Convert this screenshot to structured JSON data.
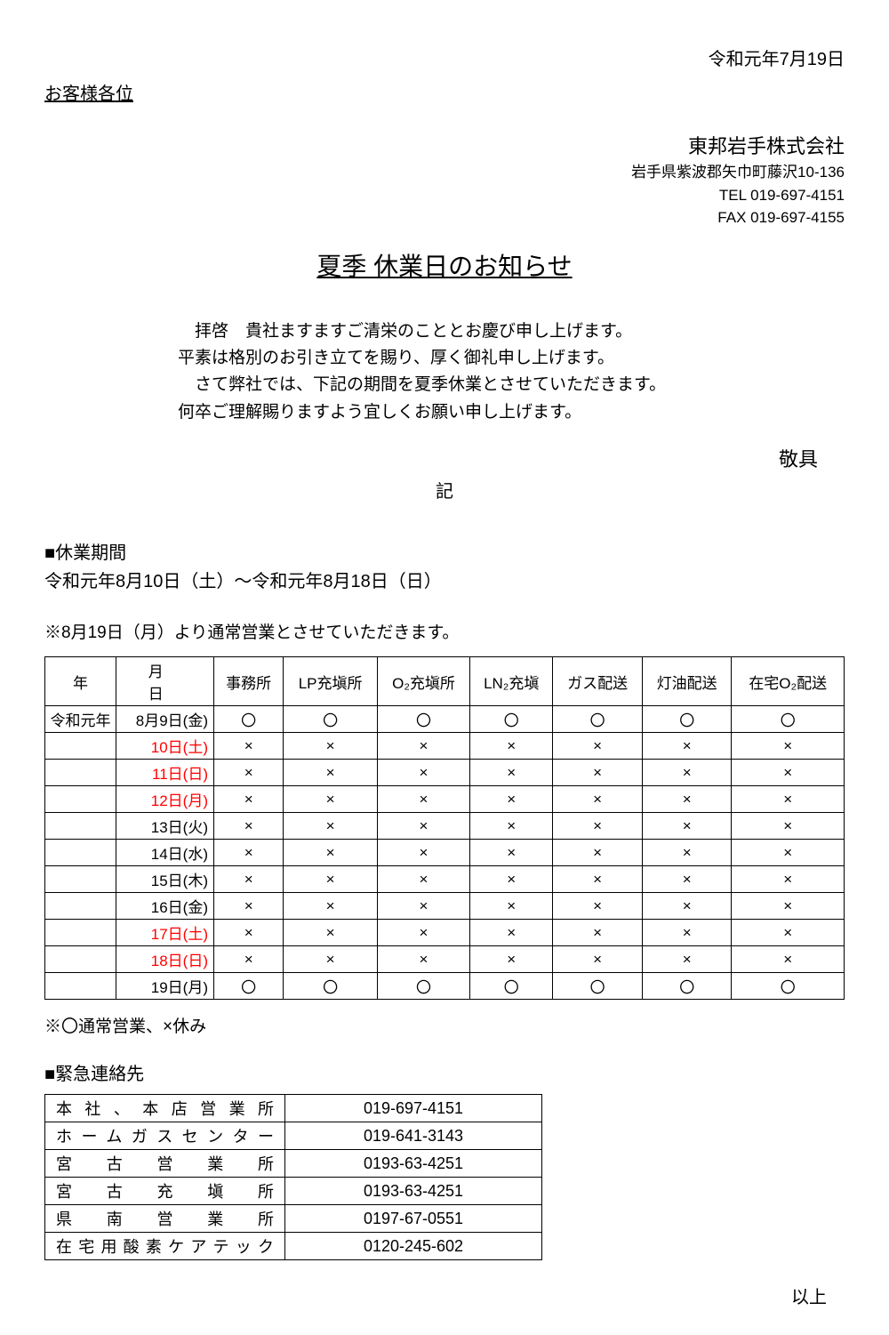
{
  "header": {
    "date": "令和元年7月19日",
    "addressee": "お客様各位"
  },
  "company": {
    "name": "東邦岩手株式会社",
    "address": "岩手県紫波郡矢巾町藤沢10-136",
    "tel": "TEL 019-697-4151",
    "fax": "FAX 019-697-4155"
  },
  "title": "夏季 休業日のお知らせ",
  "body": {
    "line1": "拝啓　貴社ますますご清栄のこととお慶び申し上げます。",
    "line2": "平素は格別のお引き立てを賜り、厚く御礼申し上げます。",
    "line3": "　さて弊社では、下記の期間を夏季休業とさせていただきます。",
    "line4": "何卒ご理解賜りますよう宜しくお願い申し上げます。"
  },
  "keigu": "敬具",
  "ki": "記",
  "sections": {
    "closure_head": "■休業期間",
    "closure_period": "令和元年8月10日（土）～令和元年8月18日（日）",
    "resume_note": "※8月19日（月）より通常営業とさせていただきます。"
  },
  "schedule": {
    "columns": [
      "年",
      "月　日",
      "事務所",
      "LP充塡所",
      "O₂充塡所",
      "LN₂充塡",
      "ガス配送",
      "灯油配送",
      "在宅O₂配送"
    ],
    "year_label": "令和元年",
    "rows": [
      {
        "date": "8月9日(金)",
        "holiday": false,
        "cells": [
          "〇",
          "〇",
          "〇",
          "〇",
          "〇",
          "〇",
          "〇"
        ]
      },
      {
        "date": "10日(土)",
        "holiday": true,
        "cells": [
          "×",
          "×",
          "×",
          "×",
          "×",
          "×",
          "×"
        ]
      },
      {
        "date": "11日(日)",
        "holiday": true,
        "cells": [
          "×",
          "×",
          "×",
          "×",
          "×",
          "×",
          "×"
        ]
      },
      {
        "date": "12日(月)",
        "holiday": true,
        "cells": [
          "×",
          "×",
          "×",
          "×",
          "×",
          "×",
          "×"
        ]
      },
      {
        "date": "13日(火)",
        "holiday": false,
        "cells": [
          "×",
          "×",
          "×",
          "×",
          "×",
          "×",
          "×"
        ]
      },
      {
        "date": "14日(水)",
        "holiday": false,
        "cells": [
          "×",
          "×",
          "×",
          "×",
          "×",
          "×",
          "×"
        ]
      },
      {
        "date": "15日(木)",
        "holiday": false,
        "cells": [
          "×",
          "×",
          "×",
          "×",
          "×",
          "×",
          "×"
        ]
      },
      {
        "date": "16日(金)",
        "holiday": false,
        "cells": [
          "×",
          "×",
          "×",
          "×",
          "×",
          "×",
          "×"
        ]
      },
      {
        "date": "17日(土)",
        "holiday": true,
        "cells": [
          "×",
          "×",
          "×",
          "×",
          "×",
          "×",
          "×"
        ]
      },
      {
        "date": "18日(日)",
        "holiday": true,
        "cells": [
          "×",
          "×",
          "×",
          "×",
          "×",
          "×",
          "×"
        ]
      },
      {
        "date": "19日(月)",
        "holiday": false,
        "cells": [
          "〇",
          "〇",
          "〇",
          "〇",
          "〇",
          "〇",
          "〇"
        ]
      }
    ]
  },
  "legend": "※〇通常営業、×休み",
  "emergency": {
    "head": "■緊急連絡先",
    "rows": [
      {
        "name": "本社、本店営業所",
        "phone": "019-697-4151"
      },
      {
        "name": "ホームガスセンター",
        "phone": "019-641-3143"
      },
      {
        "name": "宮古営業所",
        "phone": "0193-63-4251"
      },
      {
        "name": "宮古充塡所",
        "phone": "0193-63-4251"
      },
      {
        "name": "県南営業所",
        "phone": "0197-67-0551"
      },
      {
        "name": "在宅用酸素ケアテック",
        "phone": "0120-245-602"
      }
    ]
  },
  "ijou": "以上"
}
